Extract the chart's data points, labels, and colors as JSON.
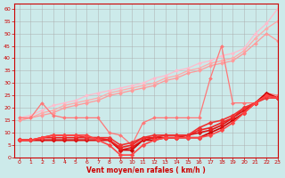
{
  "title": "",
  "xlabel": "Vent moyen/en rafales ( km/h )",
  "ylabel": "",
  "bg_color": "#cceaea",
  "grid_color": "#aaaaaa",
  "xlim": [
    -0.5,
    23
  ],
  "ylim": [
    0,
    62
  ],
  "yticks": [
    0,
    5,
    10,
    15,
    20,
    25,
    30,
    35,
    40,
    45,
    50,
    55,
    60
  ],
  "xticks": [
    0,
    1,
    2,
    3,
    4,
    5,
    6,
    7,
    8,
    9,
    10,
    11,
    12,
    13,
    14,
    15,
    16,
    17,
    18,
    19,
    20,
    21,
    22,
    23
  ],
  "lines": [
    {
      "x": [
        0,
        1,
        2,
        3,
        4,
        5,
        6,
        7,
        8,
        9,
        10,
        11,
        12,
        13,
        14,
        15,
        16,
        17,
        18,
        19,
        20,
        21,
        22,
        23
      ],
      "y": [
        16,
        17,
        19,
        21,
        22,
        23,
        25,
        26,
        27,
        28,
        29,
        30,
        32,
        33,
        35,
        36,
        38,
        39,
        41,
        42,
        44,
        50,
        54,
        60
      ],
      "color": "#ffbbcc",
      "lw": 0.9,
      "marker": "D",
      "ms": 2.0
    },
    {
      "x": [
        0,
        1,
        2,
        3,
        4,
        5,
        6,
        7,
        8,
        9,
        10,
        11,
        12,
        13,
        14,
        15,
        16,
        17,
        18,
        19,
        20,
        21,
        22,
        23
      ],
      "y": [
        15,
        16,
        18,
        19,
        21,
        22,
        23,
        24,
        26,
        27,
        28,
        29,
        30,
        32,
        33,
        35,
        36,
        38,
        39,
        40,
        43,
        48,
        52,
        55
      ],
      "color": "#ffaaaa",
      "lw": 0.9,
      "marker": "D",
      "ms": 2.0
    },
    {
      "x": [
        0,
        1,
        2,
        3,
        4,
        5,
        6,
        7,
        8,
        9,
        10,
        11,
        12,
        13,
        14,
        15,
        16,
        17,
        18,
        19,
        20,
        21,
        22,
        23
      ],
      "y": [
        15,
        16,
        17,
        18,
        20,
        21,
        22,
        23,
        25,
        26,
        27,
        28,
        29,
        31,
        32,
        34,
        35,
        37,
        38,
        39,
        42,
        46,
        50,
        47
      ],
      "color": "#ff9999",
      "lw": 0.9,
      "marker": "D",
      "ms": 2.0
    },
    {
      "x": [
        0,
        1,
        2,
        3,
        4,
        5,
        6,
        7,
        8,
        9,
        10,
        11,
        12,
        13,
        14,
        15,
        16,
        17,
        18,
        19,
        20,
        21,
        22,
        23
      ],
      "y": [
        16,
        16,
        22,
        17,
        16,
        16,
        16,
        16,
        10,
        9,
        5,
        14,
        16,
        16,
        16,
        16,
        16,
        32,
        45,
        22,
        22,
        22,
        26,
        25
      ],
      "color": "#ff7777",
      "lw": 0.9,
      "marker": "D",
      "ms": 2.0
    },
    {
      "x": [
        0,
        1,
        2,
        3,
        4,
        5,
        6,
        7,
        8,
        9,
        10,
        11,
        12,
        13,
        14,
        15,
        16,
        17,
        18,
        19,
        20,
        21,
        22,
        23
      ],
      "y": [
        7,
        7,
        7,
        7,
        7,
        7,
        7,
        7,
        7,
        3,
        3,
        7,
        7,
        8,
        8,
        8,
        8,
        10,
        12,
        15,
        18,
        22,
        26,
        24
      ],
      "color": "#cc0000",
      "lw": 1.2,
      "marker": "D",
      "ms": 2.5
    },
    {
      "x": [
        0,
        1,
        2,
        3,
        4,
        5,
        6,
        7,
        8,
        9,
        10,
        11,
        12,
        13,
        14,
        15,
        16,
        17,
        18,
        19,
        20,
        21,
        22,
        23
      ],
      "y": [
        7,
        7,
        7,
        7,
        7,
        7,
        7,
        7,
        7,
        3,
        4,
        7,
        8,
        8,
        8,
        9,
        10,
        11,
        13,
        16,
        19,
        22,
        25,
        24
      ],
      "color": "#dd1111",
      "lw": 1.2,
      "marker": "D",
      "ms": 2.5
    },
    {
      "x": [
        0,
        1,
        2,
        3,
        4,
        5,
        6,
        7,
        8,
        9,
        10,
        11,
        12,
        13,
        14,
        15,
        16,
        17,
        18,
        19,
        20,
        21,
        22,
        23
      ],
      "y": [
        7,
        7,
        8,
        8,
        8,
        8,
        8,
        8,
        7,
        4,
        5,
        8,
        8,
        9,
        9,
        9,
        11,
        12,
        14,
        16,
        20,
        22,
        25,
        24
      ],
      "color": "#ee2222",
      "lw": 1.2,
      "marker": "D",
      "ms": 2.5
    },
    {
      "x": [
        0,
        1,
        2,
        3,
        4,
        5,
        6,
        7,
        8,
        9,
        10,
        11,
        12,
        13,
        14,
        15,
        16,
        17,
        18,
        19,
        20,
        21,
        22,
        23
      ],
      "y": [
        7,
        7,
        8,
        9,
        9,
        9,
        8,
        8,
        8,
        5,
        6,
        8,
        9,
        9,
        9,
        9,
        12,
        14,
        15,
        17,
        20,
        22,
        24,
        24
      ],
      "color": "#ee3333",
      "lw": 1.2,
      "marker": "D",
      "ms": 2.5
    },
    {
      "x": [
        0,
        1,
        2,
        3,
        4,
        5,
        6,
        7,
        8,
        9,
        10,
        11,
        12,
        13,
        14,
        15,
        16,
        17,
        18,
        19,
        20,
        21,
        22,
        23
      ],
      "y": [
        7,
        7,
        8,
        9,
        9,
        9,
        9,
        7,
        5,
        1,
        1,
        5,
        7,
        8,
        8,
        8,
        8,
        9,
        11,
        14,
        18,
        22,
        25,
        24
      ],
      "color": "#ff4444",
      "lw": 1.2,
      "marker": "D",
      "ms": 2.5
    }
  ]
}
